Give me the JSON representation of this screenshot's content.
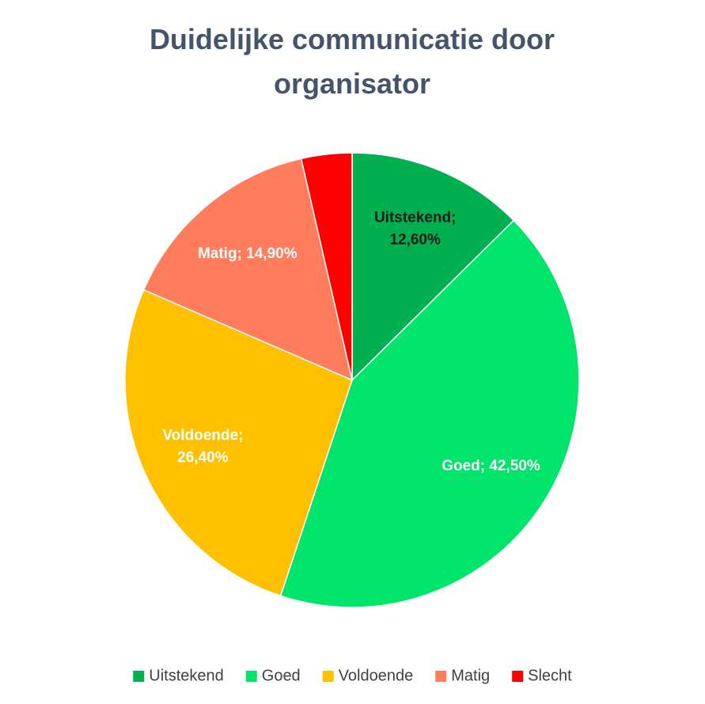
{
  "chart_data": {
    "type": "pie",
    "title": "Duidelijke communicatie door organisator",
    "categories": [
      "Uitstekend",
      "Goed",
      "Voldoende",
      "Matig",
      "Slecht"
    ],
    "values": [
      12.6,
      42.5,
      26.4,
      14.9,
      3.6
    ],
    "value_labels": [
      "Uitstekend; 12,60%",
      "Goed; 42,50%",
      "Voldoende; 26,40%",
      "Matig; 14,90%",
      null
    ],
    "colors": [
      "#00b050",
      "#00e46b",
      "#ffc000",
      "#ff7c5c",
      "#ff0000"
    ],
    "label_colors": [
      "#1a1a1a",
      "#ffffff",
      "#ffffff",
      "#ffffff",
      "#ffffff"
    ],
    "legend": "bottom"
  }
}
